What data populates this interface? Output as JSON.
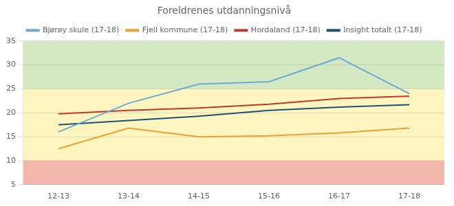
{
  "chart_data": {
    "type": "line",
    "title": "Foreldrenes utdanningsnivå",
    "categories": [
      "12-13",
      "13-14",
      "14-15",
      "15-16",
      "16-17",
      "17-18"
    ],
    "series": [
      {
        "name": "Bjørøy skule (17-18)",
        "color": "#6aaad4",
        "values": [
          16.0,
          22.0,
          26.0,
          26.5,
          31.5,
          24.0
        ]
      },
      {
        "name": "Fjell kommune (17-18)",
        "color": "#f0a030",
        "values": [
          12.5,
          16.8,
          15.0,
          15.2,
          15.8,
          16.8
        ]
      },
      {
        "name": "Hordaland (17-18)",
        "color": "#c0392b",
        "values": [
          19.8,
          20.5,
          21.0,
          21.8,
          23.0,
          23.5
        ]
      },
      {
        "name": "Insight totalt (17-18)",
        "color": "#1a5276",
        "values": [
          17.5,
          18.4,
          19.3,
          20.5,
          21.2,
          21.7
        ]
      }
    ],
    "bands": [
      {
        "from": 5,
        "to": 10,
        "color": "#f2b8ae"
      },
      {
        "from": 10,
        "to": 25,
        "color": "#fef5c0"
      },
      {
        "from": 25,
        "to": 35,
        "color": "#d5e8c4"
      }
    ],
    "ylim": [
      5,
      35
    ],
    "yticks": [
      5,
      10,
      15,
      20,
      25,
      30,
      35
    ],
    "grid": true,
    "legend": "top"
  }
}
